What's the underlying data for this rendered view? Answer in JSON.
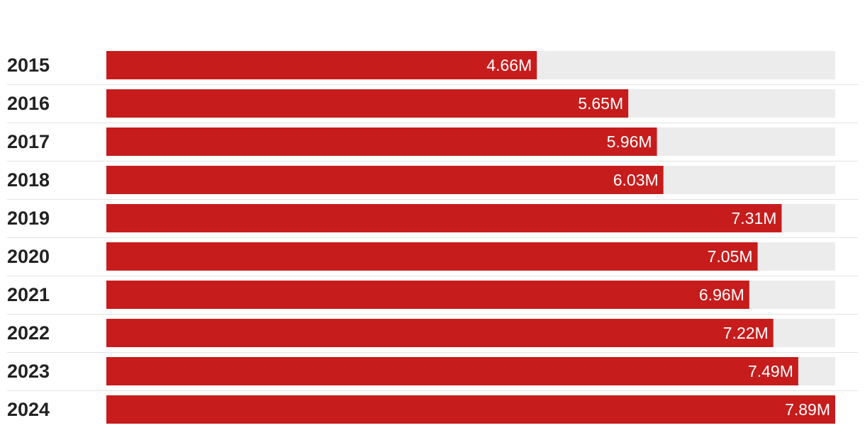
{
  "colors": {
    "bar": "#c71c1c",
    "track": "#ececec",
    "separator": "#e2e2e2",
    "label": "#222222",
    "value_text": "#ffffff"
  },
  "chart_data": {
    "type": "bar",
    "orientation": "horizontal",
    "title": "",
    "xlabel": "",
    "ylabel": "",
    "xlim": [
      0,
      7.89
    ],
    "grid": false,
    "legend": "none",
    "categories": [
      "2015",
      "2016",
      "2017",
      "2018",
      "2019",
      "2020",
      "2021",
      "2022",
      "2023",
      "2024"
    ],
    "values": [
      4.66,
      5.65,
      5.96,
      6.03,
      7.31,
      7.05,
      6.96,
      7.22,
      7.49,
      7.89
    ],
    "value_labels": [
      "4.66M",
      "5.65M",
      "5.96M",
      "6.03M",
      "7.31M",
      "7.05M",
      "6.96M",
      "7.22M",
      "7.49M",
      "7.89M"
    ]
  }
}
